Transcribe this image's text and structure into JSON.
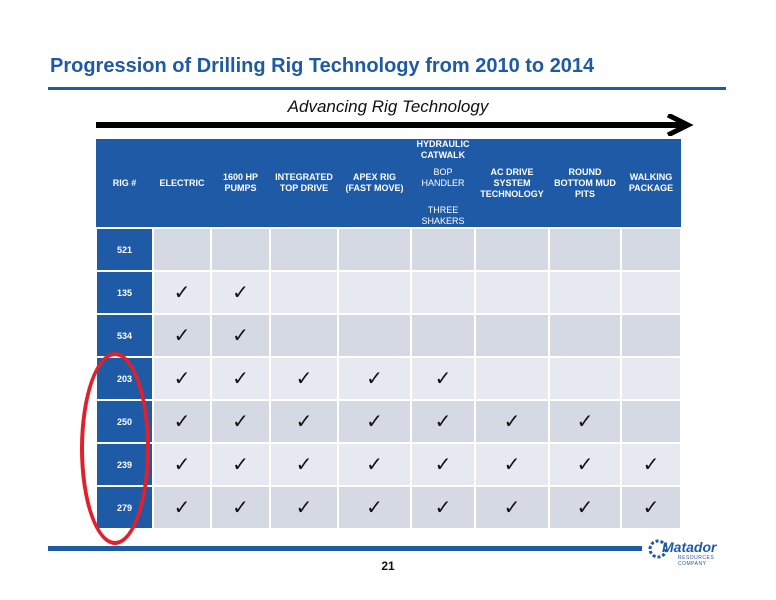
{
  "header": {
    "title": "Progression of Drilling Rig Technology from 2010 to 2014",
    "subtitle": "Advancing Rig Technology"
  },
  "table": {
    "columns": [
      {
        "label": "RIG #",
        "sub": ""
      },
      {
        "label": "ELECTRIC",
        "sub": ""
      },
      {
        "label": "1600 HP\nPUMPS",
        "sub": ""
      },
      {
        "label": "INTEGRATED\nTOP DRIVE",
        "sub": ""
      },
      {
        "label": "APEX RIG\n(FAST MOVE)",
        "sub": ""
      },
      {
        "label": "HYDRAULIC\nCATWALK",
        "sub": "BOP\nHANDLER\n\nTHREE\nSHAKERS"
      },
      {
        "label": "AC DRIVE\nSYSTEM\nTECHNOLOGY",
        "sub": ""
      },
      {
        "label": "ROUND\nBOTTOM MUD\nPITS",
        "sub": ""
      },
      {
        "label": "WALKING\nPACKAGE",
        "sub": ""
      }
    ],
    "check_symbol": "✓",
    "rows": [
      {
        "rig": "521",
        "checks": 0
      },
      {
        "rig": "135",
        "checks": 2
      },
      {
        "rig": "534",
        "checks": 2
      },
      {
        "rig": "203",
        "checks": 5
      },
      {
        "rig": "250",
        "checks": 7
      },
      {
        "rig": "239",
        "checks": 8
      },
      {
        "rig": "279",
        "checks": 8
      }
    ]
  },
  "footer": {
    "page_number": "21",
    "logo_text": "Matador",
    "logo_sub": "RESOURCES COMPANY"
  },
  "colors": {
    "brand_blue": "#1f5aa6",
    "highlight_red": "#e0202b"
  }
}
